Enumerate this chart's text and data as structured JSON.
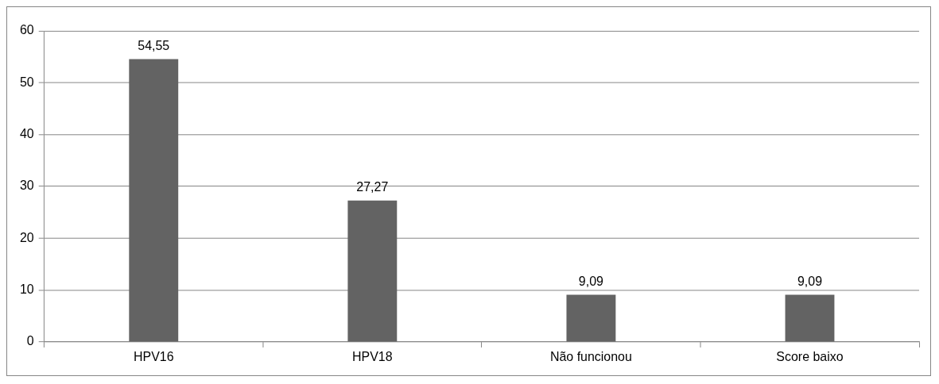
{
  "chart_data": {
    "type": "bar",
    "categories": [
      "HPV16",
      "HPV18",
      "Não funcionou",
      "Score baixo"
    ],
    "values": [
      54.55,
      27.27,
      9.09,
      9.09
    ],
    "value_labels": [
      "54,55",
      "27,27",
      "9,09",
      "9,09"
    ],
    "color": "#636363",
    "ylim": [
      0,
      60
    ],
    "yticks": [
      0,
      10,
      20,
      30,
      40,
      50,
      60
    ],
    "grid": "y",
    "legend": false
  }
}
